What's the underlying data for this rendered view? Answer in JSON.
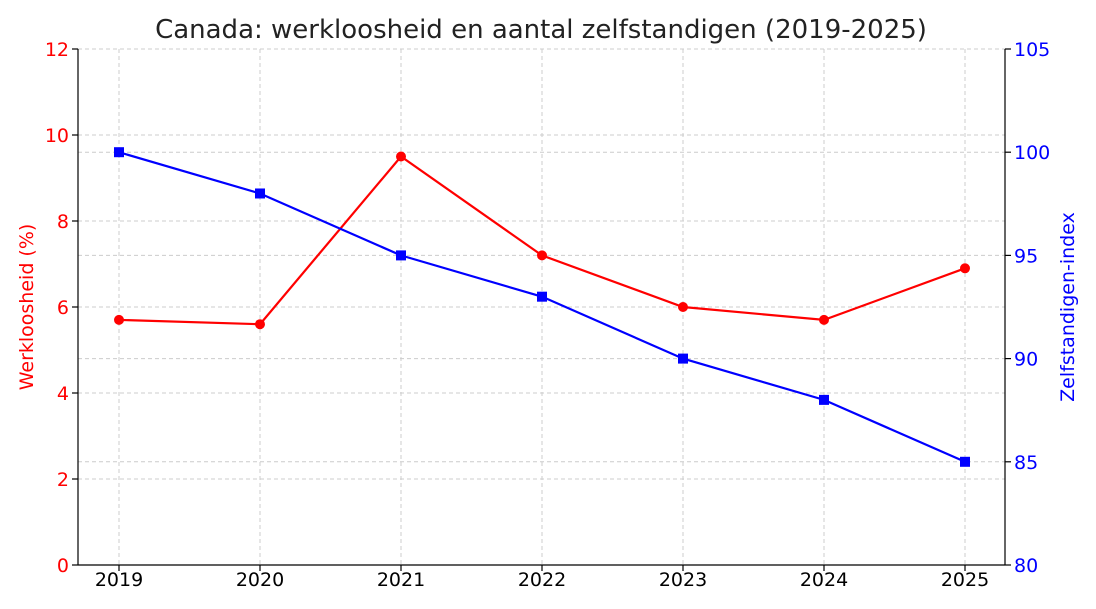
{
  "chart_data": {
    "type": "line",
    "title": "Canada: werkloosheid en aantal zelfstandigen (2019-2025)",
    "x": [
      "2019",
      "2020",
      "2021",
      "2022",
      "2023",
      "2024",
      "2025"
    ],
    "y_left": {
      "label": "Werkloosheid (%)",
      "range": [
        0,
        12
      ],
      "ticks": [
        "0",
        "2",
        "4",
        "6",
        "8",
        "10",
        "12"
      ],
      "color": "#ff0000"
    },
    "y_right": {
      "label": "Zelfstandigen-index",
      "range": [
        80,
        105
      ],
      "ticks": [
        "80",
        "85",
        "90",
        "95",
        "100",
        "105"
      ],
      "color": "#0000ff"
    },
    "series": [
      {
        "axis": "left",
        "color": "#ff0000",
        "marker": "circle",
        "values": [
          5.7,
          5.6,
          9.5,
          7.2,
          6.0,
          5.7,
          6.9
        ]
      },
      {
        "axis": "right",
        "color": "#0000ff",
        "marker": "square",
        "values": [
          100,
          98,
          95,
          93,
          90,
          88,
          85
        ]
      }
    ],
    "grid": true,
    "legend": "none"
  }
}
